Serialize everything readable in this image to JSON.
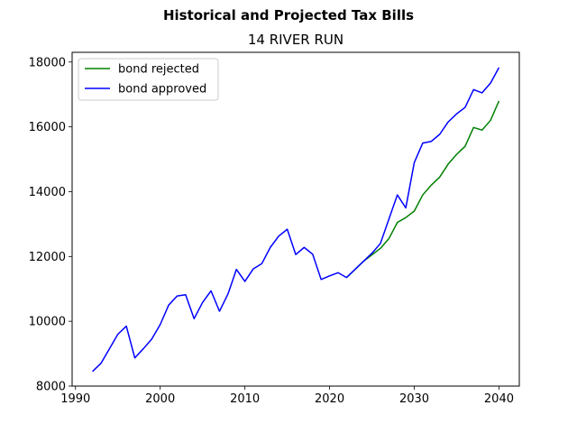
{
  "chart_data": {
    "type": "line",
    "suptitle": "Historical and Projected Tax Bills",
    "title": "14 RIVER RUN",
    "xlabel": "",
    "ylabel": "",
    "xlim": [
      1989.6,
      2042.4
    ],
    "ylim": [
      8000,
      18300
    ],
    "xticks": [
      1990,
      2000,
      2010,
      2020,
      2030,
      2040
    ],
    "yticks": [
      8000,
      10000,
      12000,
      14000,
      16000,
      18000
    ],
    "grid": false,
    "legend_position": "top-left",
    "series": [
      {
        "name": "bond rejected",
        "color": "#008000",
        "x": [
          2022,
          2023,
          2024,
          2025,
          2026,
          2027,
          2028,
          2029,
          2030,
          2031,
          2032,
          2033,
          2034,
          2035,
          2036,
          2037,
          2038,
          2039,
          2040
        ],
        "y": [
          11350,
          11600,
          11850,
          12050,
          12250,
          12550,
          13050,
          13200,
          13400,
          13900,
          14200,
          14450,
          14850,
          15150,
          15400,
          15980,
          15900,
          16200,
          16800
        ]
      },
      {
        "name": "bond approved",
        "color": "#0000ff",
        "x": [
          1992,
          1993,
          1994,
          1995,
          1996,
          1997,
          1998,
          1999,
          2000,
          2001,
          2002,
          2003,
          2004,
          2005,
          2006,
          2007,
          2008,
          2009,
          2010,
          2011,
          2012,
          2013,
          2014,
          2015,
          2016,
          2017,
          2018,
          2019,
          2020,
          2021,
          2022,
          2023,
          2024,
          2025,
          2026,
          2027,
          2028,
          2029,
          2030,
          2031,
          2032,
          2033,
          2034,
          2035,
          2036,
          2037,
          2038,
          2039,
          2040
        ],
        "y": [
          8450,
          8700,
          9150,
          9600,
          9850,
          8870,
          9150,
          9450,
          9900,
          10500,
          10780,
          10820,
          10080,
          10580,
          10940,
          10310,
          10840,
          11600,
          11230,
          11620,
          11780,
          12280,
          12630,
          12840,
          12060,
          12280,
          12070,
          11290,
          11400,
          11500,
          11350,
          11600,
          11850,
          12100,
          12400,
          13150,
          13900,
          13500,
          14900,
          15500,
          15550,
          15770,
          16150,
          16400,
          16600,
          17150,
          17050,
          17350,
          17830
        ]
      }
    ]
  }
}
